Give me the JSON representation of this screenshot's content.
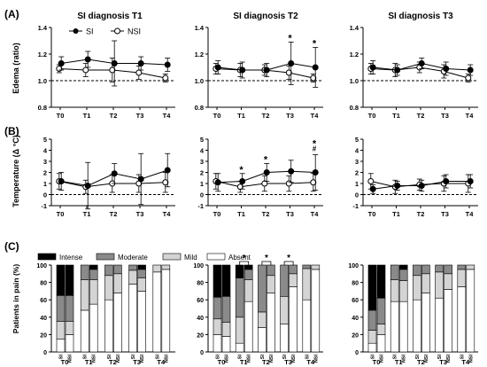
{
  "figure": {
    "panel_labels": [
      "(A)",
      "(B)",
      "(C)"
    ],
    "column_titles": [
      "SI diagnosis T1",
      "SI diagnosis T2",
      "SI diagnosis T3"
    ],
    "legend": {
      "si": "SI",
      "nsi": "NSI"
    }
  },
  "chart_data": [
    {
      "id": "A",
      "type": "line",
      "ylabel": "Edema (ratio)",
      "ylim": [
        0.8,
        1.4
      ],
      "yticks": [
        "0.8",
        "1.0",
        "1.2",
        "1.4"
      ],
      "reference_line": 1.0,
      "categories": [
        "T0",
        "T1",
        "T2",
        "T3",
        "T4"
      ],
      "panels": [
        {
          "title": "SI diagnosis T1",
          "series": [
            {
              "name": "SI",
              "values": [
                1.13,
                1.16,
                1.13,
                1.13,
                1.12
              ],
              "err": [
                0.05,
                0.06,
                0.17,
                0.05,
                0.05
              ]
            },
            {
              "name": "NSI",
              "values": [
                1.09,
                1.08,
                1.08,
                1.06,
                1.02
              ],
              "err": [
                0.03,
                0.05,
                0.09,
                0.05,
                0.03
              ]
            }
          ],
          "annotations": []
        },
        {
          "title": "SI diagnosis T2",
          "series": [
            {
              "name": "SI",
              "values": [
                1.1,
                1.08,
                1.08,
                1.13,
                1.1
              ],
              "err": [
                0.05,
                0.06,
                0.05,
                0.16,
                0.15
              ]
            },
            {
              "name": "NSI",
              "values": [
                1.09,
                1.08,
                1.08,
                1.06,
                1.02
              ],
              "err": [
                0.04,
                0.05,
                0.04,
                0.05,
                0.03
              ]
            }
          ],
          "annotations": [
            {
              "category": "T3",
              "text": "*"
            },
            {
              "category": "T4",
              "text": "*"
            }
          ]
        },
        {
          "title": "SI diagnosis T3",
          "series": [
            {
              "name": "SI",
              "values": [
                1.1,
                1.08,
                1.13,
                1.09,
                1.08
              ],
              "err": [
                0.05,
                0.04,
                0.04,
                0.05,
                0.04
              ]
            },
            {
              "name": "NSI",
              "values": [
                1.09,
                1.08,
                1.1,
                1.07,
                1.02
              ],
              "err": [
                0.04,
                0.05,
                0.04,
                0.05,
                0.03
              ]
            }
          ],
          "annotations": []
        }
      ]
    },
    {
      "id": "B",
      "type": "line",
      "ylabel": "Temperature (Δ °C)",
      "ylim": [
        -1,
        5
      ],
      "yticks": [
        "-1",
        "0",
        "1",
        "2",
        "3",
        "4",
        "5"
      ],
      "reference_line": 0,
      "categories": [
        "T0",
        "T1",
        "T2",
        "T3",
        "T4"
      ],
      "panels": [
        {
          "title": "SI diagnosis T1",
          "series": [
            {
              "name": "SI",
              "values": [
                1.2,
                0.8,
                1.9,
                1.4,
                2.2
              ],
              "err": [
                0.8,
                2.1,
                0.9,
                2.3,
                1.5
              ]
            },
            {
              "name": "NSI",
              "values": [
                1.2,
                0.7,
                1.0,
                1.0,
                1.1
              ],
              "err": [
                0.7,
                0.6,
                0.8,
                0.8,
                0.9
              ]
            }
          ],
          "annotations": []
        },
        {
          "title": "SI diagnosis T2",
          "series": [
            {
              "name": "SI",
              "values": [
                1.1,
                1.2,
                2.0,
                2.1,
                2.0
              ],
              "err": [
                0.8,
                0.7,
                0.8,
                1.0,
                1.6
              ]
            },
            {
              "name": "NSI",
              "values": [
                1.2,
                0.7,
                1.0,
                1.0,
                1.1
              ],
              "err": [
                0.7,
                0.5,
                0.7,
                0.7,
                0.8
              ]
            }
          ],
          "annotations": [
            {
              "category": "T1",
              "text": "*"
            },
            {
              "category": "T2",
              "text": "*"
            },
            {
              "category": "T4",
              "text": "*\n#"
            }
          ]
        },
        {
          "title": "SI diagnosis T3",
          "series": [
            {
              "name": "SI",
              "values": [
                0.5,
                0.8,
                0.8,
                1.2,
                1.2
              ],
              "err": [
                0.4,
                0.4,
                0.5,
                0.6,
                0.6
              ]
            },
            {
              "name": "NSI",
              "values": [
                1.2,
                0.7,
                0.9,
                1.0,
                1.0
              ],
              "err": [
                0.7,
                0.6,
                0.5,
                0.7,
                0.8
              ]
            }
          ],
          "annotations": []
        }
      ]
    },
    {
      "id": "C",
      "type": "bar",
      "stacked": true,
      "ylabel": "Patients in pain (%)",
      "ylim": [
        0,
        100
      ],
      "yticks": [
        "0",
        "20",
        "40",
        "60",
        "80",
        "100"
      ],
      "legend": [
        "Intense",
        "Moderate",
        "Mild",
        "Absent"
      ],
      "legend_colors": [
        "#000000",
        "#8a8a8a",
        "#d4d4d4",
        "#ffffff"
      ],
      "groups": [
        "T0",
        "T1",
        "T2",
        "T3",
        "T4"
      ],
      "bar_labels": [
        "SI",
        "NSI"
      ],
      "panels": [
        {
          "title": "SI diagnosis T1",
          "bars": [
            {
              "group": "T0",
              "label": "SI",
              "absent": 15,
              "mild": 20,
              "moderate": 30,
              "intense": 35
            },
            {
              "group": "T0",
              "label": "NSI",
              "absent": 20,
              "mild": 15,
              "moderate": 30,
              "intense": 35
            },
            {
              "group": "T1",
              "label": "SI",
              "absent": 48,
              "mild": 35,
              "moderate": 17,
              "intense": 0
            },
            {
              "group": "T1",
              "label": "NSI",
              "absent": 55,
              "mild": 28,
              "moderate": 12,
              "intense": 5
            },
            {
              "group": "T2",
              "label": "SI",
              "absent": 60,
              "mild": 28,
              "moderate": 12,
              "intense": 0
            },
            {
              "group": "T2",
              "label": "NSI",
              "absent": 68,
              "mild": 22,
              "moderate": 10,
              "intense": 0
            },
            {
              "group": "T3",
              "label": "SI",
              "absent": 78,
              "mild": 16,
              "moderate": 6,
              "intense": 0
            },
            {
              "group": "T3",
              "label": "NSI",
              "absent": 70,
              "mild": 15,
              "moderate": 10,
              "intense": 5
            },
            {
              "group": "T4",
              "label": "SI",
              "absent": 92,
              "mild": 8,
              "moderate": 0,
              "intense": 0
            },
            {
              "group": "T4",
              "label": "NSI",
              "absent": 95,
              "mild": 5,
              "moderate": 0,
              "intense": 0
            }
          ],
          "brackets": []
        },
        {
          "title": "SI diagnosis T2",
          "bars": [
            {
              "group": "T0",
              "label": "SI",
              "absent": 20,
              "mild": 18,
              "moderate": 25,
              "intense": 37
            },
            {
              "group": "T0",
              "label": "NSI",
              "absent": 18,
              "mild": 16,
              "moderate": 30,
              "intense": 36
            },
            {
              "group": "T1",
              "label": "SI",
              "absent": 10,
              "mild": 30,
              "moderate": 45,
              "intense": 15
            },
            {
              "group": "T1",
              "label": "NSI",
              "absent": 58,
              "mild": 25,
              "moderate": 12,
              "intense": 5
            },
            {
              "group": "T2",
              "label": "SI",
              "absent": 28,
              "mild": 18,
              "moderate": 54,
              "intense": 0
            },
            {
              "group": "T2",
              "label": "NSI",
              "absent": 68,
              "mild": 20,
              "moderate": 12,
              "intense": 0
            },
            {
              "group": "T3",
              "label": "SI",
              "absent": 32,
              "mild": 32,
              "moderate": 36,
              "intense": 0
            },
            {
              "group": "T3",
              "label": "NSI",
              "absent": 75,
              "mild": 15,
              "moderate": 10,
              "intense": 0
            },
            {
              "group": "T4",
              "label": "SI",
              "absent": 60,
              "mild": 36,
              "moderate": 4,
              "intense": 0
            },
            {
              "group": "T4",
              "label": "NSI",
              "absent": 95,
              "mild": 5,
              "moderate": 0,
              "intense": 0
            }
          ],
          "brackets": [
            {
              "group": "T1",
              "text": "*"
            },
            {
              "group": "T2",
              "text": "*"
            },
            {
              "group": "T3",
              "text": "*"
            }
          ]
        },
        {
          "title": "SI diagnosis T3",
          "bars": [
            {
              "group": "T0",
              "label": "SI",
              "absent": 10,
              "mild": 15,
              "moderate": 23,
              "intense": 52
            },
            {
              "group": "T0",
              "label": "NSI",
              "absent": 20,
              "mild": 12,
              "moderate": 30,
              "intense": 38
            },
            {
              "group": "T1",
              "label": "SI",
              "absent": 58,
              "mild": 25,
              "moderate": 17,
              "intense": 0
            },
            {
              "group": "T1",
              "label": "NSI",
              "absent": 58,
              "mild": 24,
              "moderate": 13,
              "intense": 5
            },
            {
              "group": "T2",
              "label": "SI",
              "absent": 60,
              "mild": 28,
              "moderate": 12,
              "intense": 0
            },
            {
              "group": "T2",
              "label": "NSI",
              "absent": 68,
              "mild": 22,
              "moderate": 10,
              "intense": 0
            },
            {
              "group": "T3",
              "label": "SI",
              "absent": 62,
              "mild": 30,
              "moderate": 8,
              "intense": 0
            },
            {
              "group": "T3",
              "label": "NSI",
              "absent": 72,
              "mild": 18,
              "moderate": 10,
              "intense": 0
            },
            {
              "group": "T4",
              "label": "SI",
              "absent": 75,
              "mild": 20,
              "moderate": 5,
              "intense": 0
            },
            {
              "group": "T4",
              "label": "NSI",
              "absent": 95,
              "mild": 5,
              "moderate": 0,
              "intense": 0
            }
          ],
          "brackets": []
        }
      ]
    }
  ]
}
